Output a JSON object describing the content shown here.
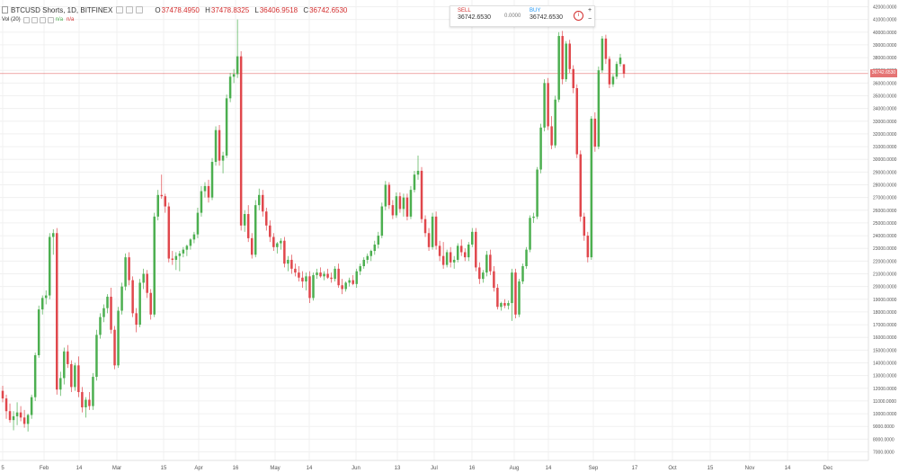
{
  "header": {
    "title": "BTCUSD Shorts, 1D, BITFINEX",
    "ohlc": [
      {
        "key": "O",
        "value": "37478.4950"
      },
      {
        "key": "H",
        "value": "37478.8325"
      },
      {
        "key": "L",
        "value": "36406.9518"
      },
      {
        "key": "C",
        "value": "36742.6530"
      }
    ]
  },
  "volume": {
    "label": "Vol (20)",
    "value1": "n/a",
    "value2": "n/a"
  },
  "trade": {
    "sell_label": "SELL",
    "sell_value": "36742.6530",
    "spread": "0.0000",
    "buy_label": "BUY",
    "buy_value": "36742.6530",
    "info_icon": "i",
    "plus_icon": "+",
    "minus_icon": "−"
  },
  "price_tag": "36742.6530",
  "colors": {
    "up": "#4caf50",
    "down": "#e0474c",
    "grid": "#f0f0f0",
    "price_line": "#e57373"
  },
  "chart_data": {
    "type": "candlestick",
    "y_ticks": [
      "42000.0000",
      "41000.0000",
      "40000.0000",
      "39000.0000",
      "38000.0000",
      "37000.0000",
      "36000.0000",
      "35000.0000",
      "34000.0000",
      "33000.0000",
      "32000.0000",
      "31000.0000",
      "30000.0000",
      "29000.0000",
      "28000.0000",
      "27000.0000",
      "26000.0000",
      "25000.0000",
      "24000.0000",
      "23000.0000",
      "22000.0000",
      "21000.0000",
      "20000.0000",
      "19000.0000",
      "18000.0000",
      "17000.0000",
      "16000.0000",
      "15000.0000",
      "14000.0000",
      "13000.0000",
      "12000.0000",
      "11000.0000",
      "10000.0000",
      "9000.0000",
      "8000.0000",
      "7000.0000"
    ],
    "x_ticks": [
      "5",
      "Feb",
      "14",
      "Mar",
      "15",
      "Apr",
      "16",
      "May",
      "14",
      "Jun",
      "13",
      "Jul",
      "16",
      "Aug",
      "14",
      "Sep",
      "17",
      "Oct",
      "15",
      "Nov",
      "14",
      "Dec"
    ],
    "ylim": [
      6000,
      42700
    ],
    "last_price": 36742.653,
    "series": [
      [
        11800,
        12200,
        10900,
        11200
      ],
      [
        11200,
        11500,
        9600,
        10200
      ],
      [
        10200,
        10800,
        9300,
        9500
      ],
      [
        9500,
        10200,
        8700,
        9800
      ],
      [
        9800,
        10900,
        9100,
        10100
      ],
      [
        10100,
        10600,
        9400,
        9700
      ],
      [
        9700,
        10300,
        8900,
        9200
      ],
      [
        9200,
        10000,
        8600,
        9900
      ],
      [
        9900,
        11500,
        9600,
        11300
      ],
      [
        11300,
        14800,
        11000,
        14600
      ],
      [
        14600,
        18500,
        14400,
        18200
      ],
      [
        18200,
        19300,
        17800,
        19100
      ],
      [
        19100,
        19700,
        18600,
        19300
      ],
      [
        19300,
        24200,
        19000,
        23900
      ],
      [
        23900,
        24500,
        22500,
        24200
      ],
      [
        24200,
        24600,
        11500,
        11900
      ],
      [
        11900,
        13300,
        11400,
        12800
      ],
      [
        12800,
        15200,
        12300,
        14900
      ],
      [
        14900,
        15400,
        13600,
        13900
      ],
      [
        13900,
        14200,
        11700,
        12100
      ],
      [
        12100,
        14000,
        11800,
        13800
      ],
      [
        13800,
        14500,
        11300,
        11700
      ],
      [
        11700,
        12100,
        10100,
        10500
      ],
      [
        10500,
        11300,
        9700,
        11100
      ],
      [
        11100,
        11700,
        10300,
        10600
      ],
      [
        10600,
        13200,
        10300,
        12900
      ],
      [
        12900,
        16600,
        12600,
        16200
      ],
      [
        16200,
        17900,
        15900,
        17600
      ],
      [
        17600,
        18600,
        17200,
        18300
      ],
      [
        18300,
        19400,
        17900,
        19200
      ],
      [
        19200,
        19900,
        16300,
        16600
      ],
      [
        16600,
        16900,
        13500,
        13800
      ],
      [
        13800,
        18400,
        13600,
        18100
      ],
      [
        18100,
        20300,
        17800,
        20000
      ],
      [
        20000,
        22600,
        19700,
        22300
      ],
      [
        22300,
        22700,
        20100,
        20500
      ],
      [
        20500,
        20800,
        17600,
        17900
      ],
      [
        17900,
        18300,
        16400,
        17000
      ],
      [
        17000,
        20600,
        16800,
        20300
      ],
      [
        20300,
        21400,
        19800,
        21000
      ],
      [
        21000,
        21300,
        19100,
        19500
      ],
      [
        19500,
        19800,
        17400,
        17800
      ],
      [
        17800,
        25800,
        17600,
        25500
      ],
      [
        25500,
        27600,
        25200,
        27200
      ],
      [
        27200,
        28800,
        26900,
        27100
      ],
      [
        27100,
        27300,
        25800,
        26300
      ],
      [
        26300,
        26600,
        21900,
        22200
      ],
      [
        22200,
        22800,
        21700,
        22100
      ],
      [
        22100,
        22700,
        21300,
        22400
      ],
      [
        22400,
        22800,
        21200,
        22600
      ],
      [
        22600,
        23100,
        22300,
        22900
      ],
      [
        22900,
        23300,
        22400,
        23200
      ],
      [
        23200,
        23800,
        22900,
        23700
      ],
      [
        23700,
        24300,
        23400,
        24100
      ],
      [
        24100,
        26200,
        23800,
        25800
      ],
      [
        25800,
        27900,
        25500,
        27500
      ],
      [
        27500,
        28200,
        27000,
        27900
      ],
      [
        27900,
        28400,
        26600,
        27000
      ],
      [
        27000,
        30100,
        26800,
        29800
      ],
      [
        29800,
        32600,
        29500,
        32300
      ],
      [
        32300,
        32700,
        29500,
        29900
      ],
      [
        29900,
        30600,
        28900,
        30300
      ],
      [
        30300,
        35100,
        30100,
        34800
      ],
      [
        34800,
        36800,
        34500,
        36500
      ],
      [
        36500,
        37100,
        36000,
        36700
      ],
      [
        36700,
        41000,
        36400,
        38100
      ],
      [
        38100,
        38500,
        24400,
        24800
      ],
      [
        24800,
        26000,
        24300,
        25700
      ],
      [
        25700,
        26400,
        23500,
        23800
      ],
      [
        23800,
        24200,
        22200,
        22500
      ],
      [
        22500,
        26800,
        22300,
        26400
      ],
      [
        26400,
        27700,
        26000,
        27200
      ],
      [
        27200,
        27600,
        25500,
        25900
      ],
      [
        25900,
        26200,
        24400,
        24800
      ],
      [
        24800,
        25200,
        23500,
        23900
      ],
      [
        23900,
        24200,
        22800,
        23100
      ],
      [
        23100,
        23500,
        22600,
        23400
      ],
      [
        23400,
        23800,
        22900,
        23600
      ],
      [
        23600,
        23900,
        21500,
        21800
      ],
      [
        21800,
        22400,
        21200,
        22100
      ],
      [
        22100,
        22500,
        21000,
        21400
      ],
      [
        21400,
        21800,
        20800,
        21100
      ],
      [
        21100,
        21600,
        20400,
        20700
      ],
      [
        20700,
        21200,
        19900,
        20400
      ],
      [
        20400,
        21100,
        19700,
        20800
      ],
      [
        20800,
        21200,
        18700,
        19100
      ],
      [
        19100,
        21100,
        18900,
        20900
      ],
      [
        20900,
        21400,
        20600,
        21100
      ],
      [
        21100,
        21500,
        20700,
        20800
      ],
      [
        20800,
        21200,
        20500,
        21000
      ],
      [
        21000,
        21400,
        20600,
        20700
      ],
      [
        20700,
        21100,
        20300,
        20600
      ],
      [
        20600,
        21600,
        20400,
        21400
      ],
      [
        21400,
        21800,
        19900,
        20100
      ],
      [
        20100,
        20600,
        19400,
        19800
      ],
      [
        19800,
        20400,
        19600,
        20300
      ],
      [
        20300,
        20700,
        20000,
        20500
      ],
      [
        20500,
        20900,
        20100,
        20200
      ],
      [
        20200,
        21400,
        19900,
        21200
      ],
      [
        21200,
        21800,
        20900,
        21600
      ],
      [
        21600,
        22300,
        21400,
        22100
      ],
      [
        22100,
        22600,
        21800,
        22400
      ],
      [
        22400,
        22900,
        22000,
        22800
      ],
      [
        22800,
        23600,
        22500,
        23300
      ],
      [
        23300,
        24300,
        23000,
        24000
      ],
      [
        24000,
        26600,
        23800,
        26300
      ],
      [
        26300,
        28300,
        26000,
        28000
      ],
      [
        28000,
        28200,
        26100,
        26400
      ],
      [
        26400,
        26800,
        25300,
        25600
      ],
      [
        25600,
        27400,
        25400,
        27100
      ],
      [
        27100,
        27400,
        25800,
        26100
      ],
      [
        26100,
        27300,
        25500,
        27000
      ],
      [
        27000,
        27300,
        25200,
        25500
      ],
      [
        25500,
        27900,
        25300,
        27600
      ],
      [
        27600,
        29100,
        27400,
        28800
      ],
      [
        28800,
        30300,
        28400,
        29100
      ],
      [
        29100,
        29400,
        25000,
        25300
      ],
      [
        25300,
        25600,
        23900,
        24200
      ],
      [
        24200,
        24600,
        22800,
        23100
      ],
      [
        23100,
        25800,
        22900,
        25500
      ],
      [
        25500,
        25900,
        22900,
        23200
      ],
      [
        23200,
        23600,
        22000,
        22400
      ],
      [
        22400,
        23500,
        21400,
        21700
      ],
      [
        21700,
        22900,
        21500,
        22700
      ],
      [
        22700,
        23100,
        21500,
        21900
      ],
      [
        21900,
        22400,
        21400,
        22100
      ],
      [
        22100,
        23400,
        21900,
        23200
      ],
      [
        23200,
        23700,
        22400,
        22700
      ],
      [
        22700,
        23000,
        22000,
        22300
      ],
      [
        22300,
        23500,
        22000,
        23300
      ],
      [
        23300,
        24600,
        23100,
        24300
      ],
      [
        24300,
        24600,
        21200,
        21500
      ],
      [
        21500,
        21900,
        20200,
        20600
      ],
      [
        20600,
        21300,
        20300,
        21100
      ],
      [
        21100,
        22800,
        20800,
        22500
      ],
      [
        22500,
        22900,
        20900,
        21200
      ],
      [
        21200,
        21600,
        19600,
        19900
      ],
      [
        19900,
        20200,
        18200,
        18400
      ],
      [
        18400,
        18800,
        18100,
        18700
      ],
      [
        18700,
        19000,
        18300,
        18500
      ],
      [
        18500,
        18900,
        18200,
        18700
      ],
      [
        18700,
        21400,
        17300,
        21100
      ],
      [
        21100,
        21400,
        17500,
        17800
      ],
      [
        17800,
        20600,
        17600,
        20400
      ],
      [
        20400,
        21800,
        20200,
        21600
      ],
      [
        21600,
        23100,
        21400,
        22900
      ],
      [
        22900,
        25600,
        22700,
        25400
      ],
      [
        25400,
        25800,
        25000,
        25500
      ],
      [
        25500,
        29400,
        25300,
        29200
      ],
      [
        29200,
        32800,
        28900,
        32500
      ],
      [
        32500,
        36300,
        32200,
        36000
      ],
      [
        36000,
        36400,
        32300,
        32600
      ],
      [
        32600,
        33400,
        30800,
        31100
      ],
      [
        31100,
        35000,
        30900,
        34700
      ],
      [
        34700,
        40000,
        34500,
        39700
      ],
      [
        39700,
        40100,
        35900,
        36300
      ],
      [
        36300,
        39300,
        36100,
        39100
      ],
      [
        39100,
        39400,
        36800,
        37100
      ],
      [
        37100,
        37400,
        35200,
        35600
      ],
      [
        35600,
        35900,
        30100,
        30400
      ],
      [
        30400,
        30700,
        25100,
        25500
      ],
      [
        25500,
        25800,
        23600,
        24000
      ],
      [
        24000,
        24300,
        21900,
        22300
      ],
      [
        22300,
        33400,
        22100,
        33200
      ],
      [
        33200,
        33700,
        30600,
        31000
      ],
      [
        31000,
        37300,
        30800,
        37000
      ],
      [
        37000,
        39700,
        36800,
        39500
      ],
      [
        39500,
        39800,
        37500,
        37900
      ],
      [
        37900,
        38100,
        35600,
        35900
      ],
      [
        35900,
        36700,
        35700,
        36500
      ],
      [
        36500,
        37700,
        36300,
        37500
      ],
      [
        37500,
        38300,
        37300,
        38000
      ],
      [
        37478.495,
        37478.8325,
        36406.9518,
        36742.653
      ]
    ]
  }
}
